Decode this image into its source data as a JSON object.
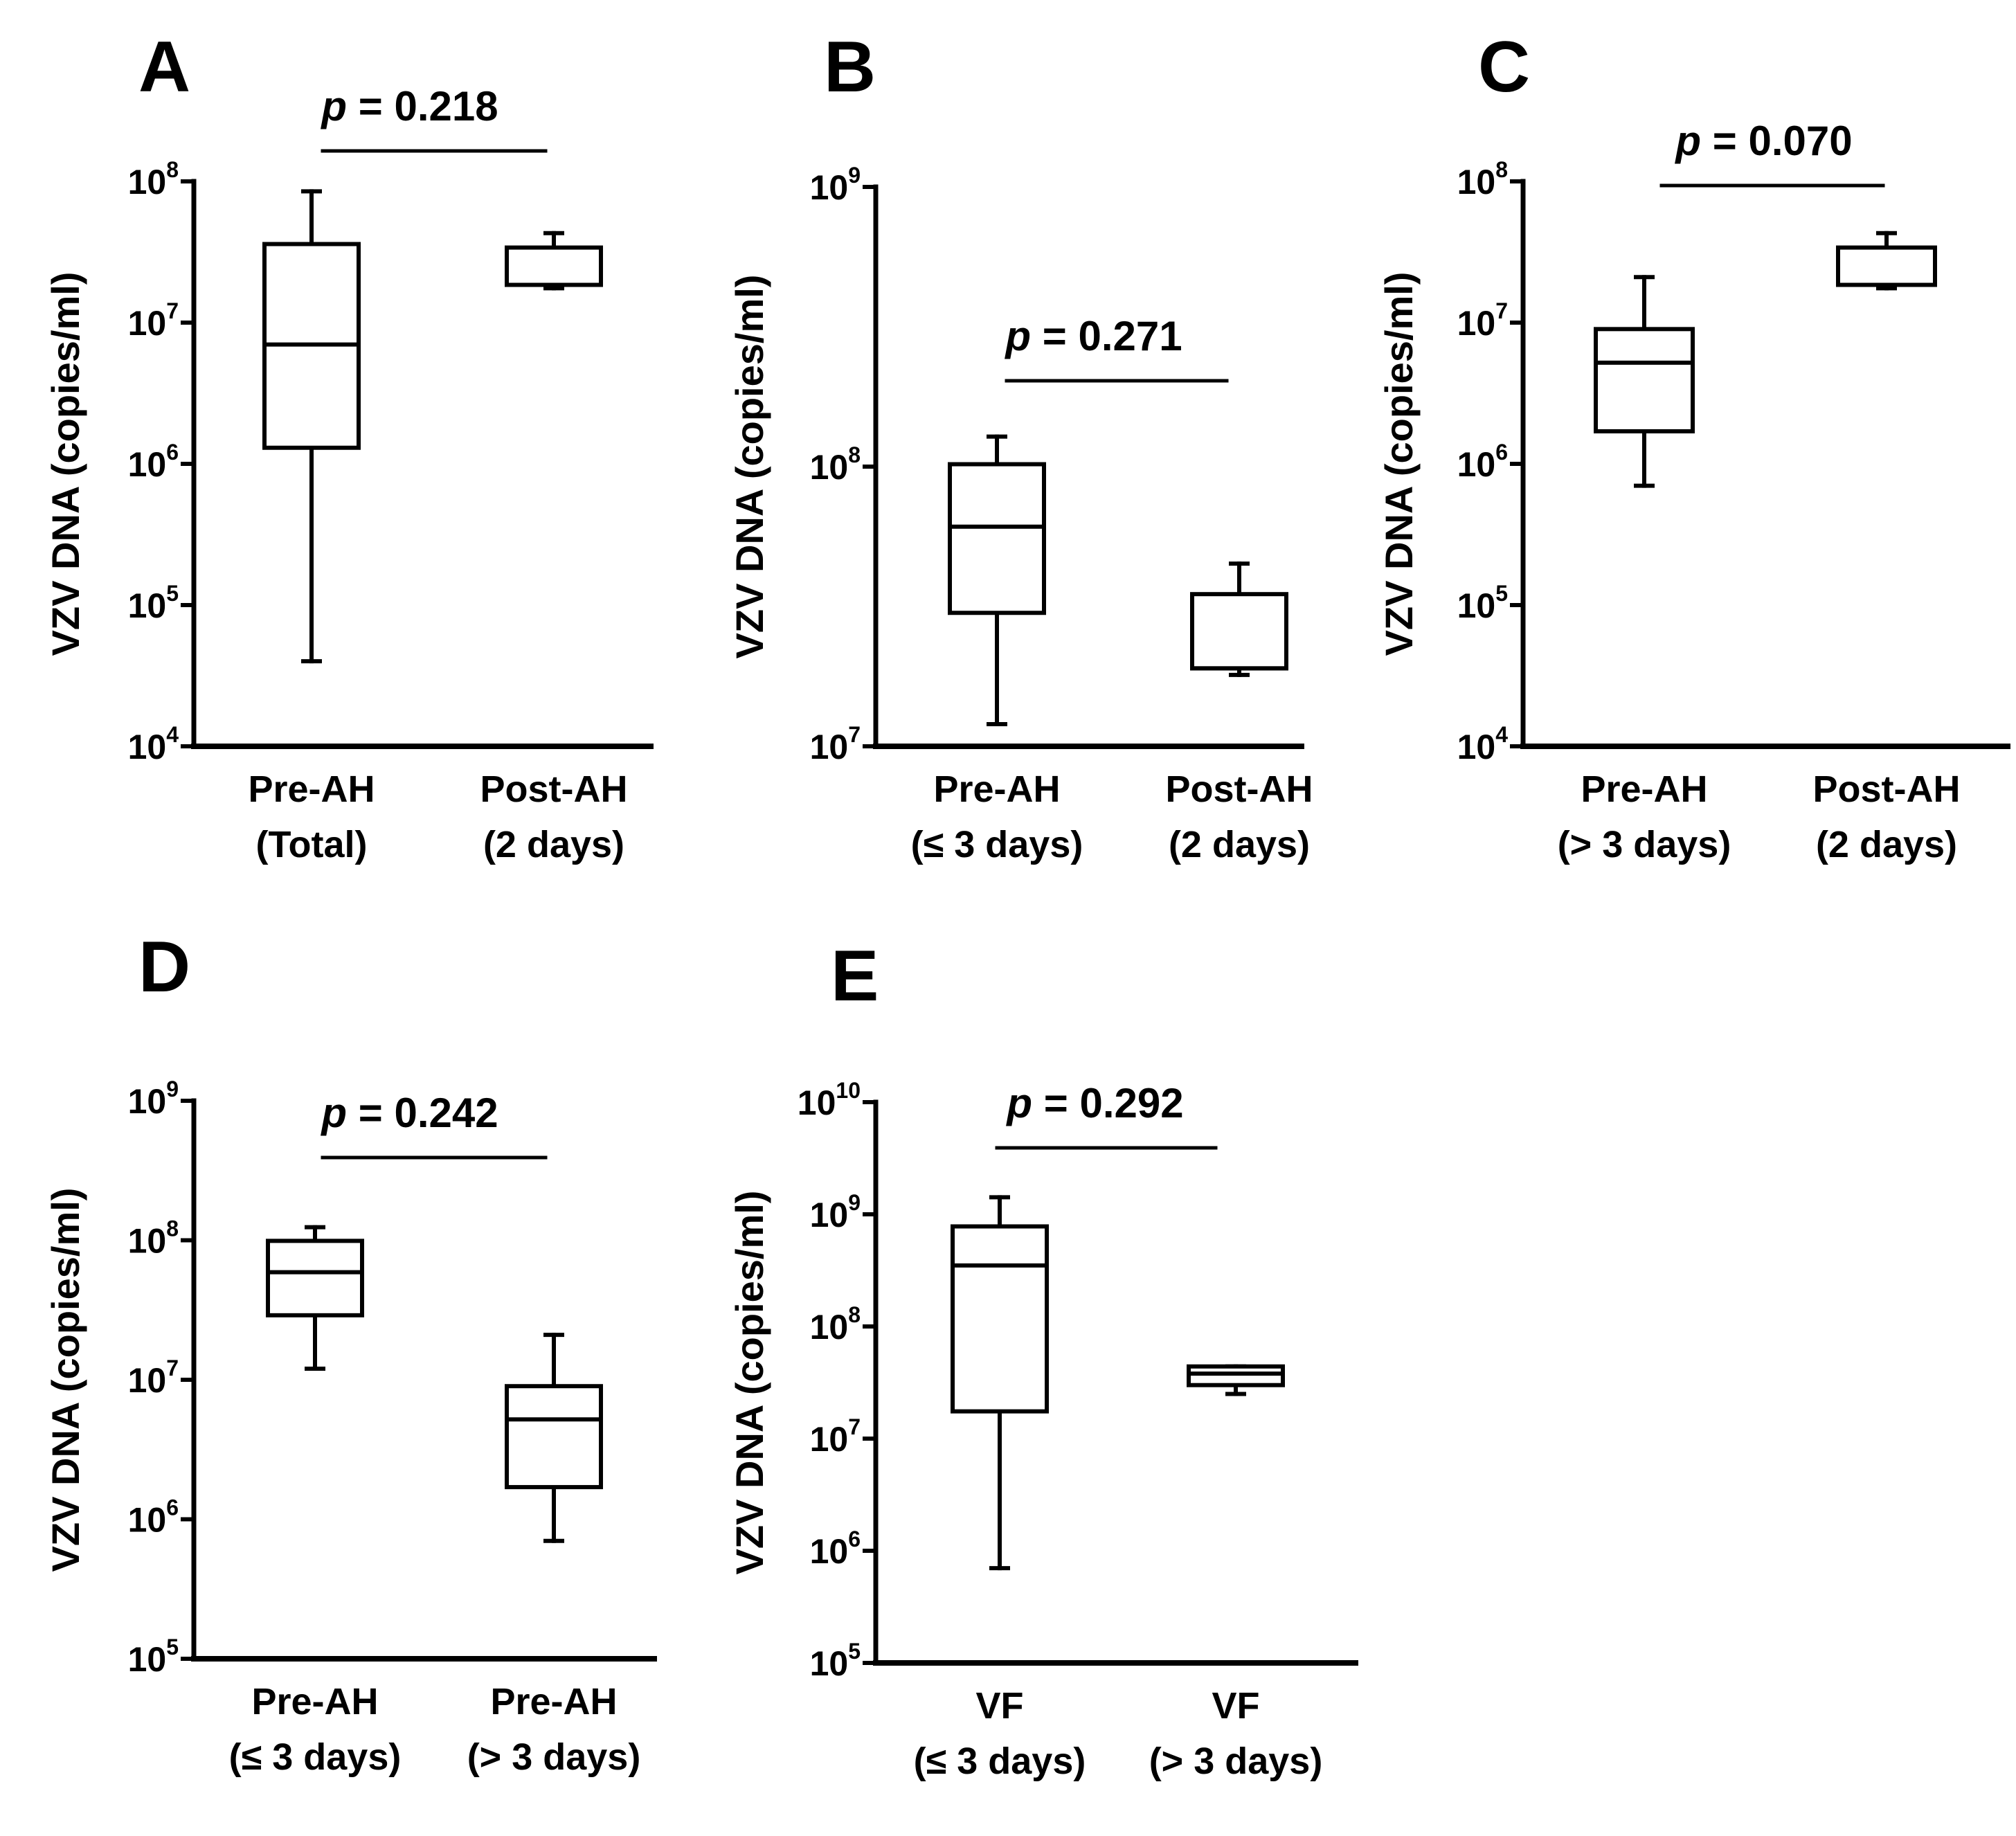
{
  "chart_data": [
    {
      "panel": "A",
      "type": "box",
      "ylabel": "VZV DNA (copies/ml)",
      "yscale": "log",
      "ylim_exponents": [
        4,
        8
      ],
      "yticks": [
        {
          "base": "10",
          "exp": "4"
        },
        {
          "base": "10",
          "exp": "5"
        },
        {
          "base": "10",
          "exp": "6"
        },
        {
          "base": "10",
          "exp": "7"
        },
        {
          "base": "10",
          "exp": "8"
        }
      ],
      "p_prefix": "p",
      "p_value": "= 0.218",
      "categories": [
        {
          "line1": "Pre-AH",
          "line2": "(Total)",
          "min": 40000,
          "q1": 1300000,
          "median": 7000000,
          "q3": 36000000,
          "max": 85000000
        },
        {
          "line1": "Post-AH",
          "line2": "(2 days)",
          "min": 17500000,
          "q1": 18500000,
          "median": 18500000,
          "q3": 34000000,
          "max": 43000000
        }
      ]
    },
    {
      "panel": "B",
      "type": "box",
      "ylabel": "VZV DNA (copies/ml)",
      "yscale": "log",
      "ylim_exponents": [
        7,
        9
      ],
      "yticks": [
        {
          "base": "10",
          "exp": "7"
        },
        {
          "base": "10",
          "exp": "8"
        },
        {
          "base": "10",
          "exp": "9"
        }
      ],
      "p_prefix": "p",
      "p_value": "= 0.271",
      "categories": [
        {
          "line1": "Pre-AH",
          "line2": "(≤ 3 days)",
          "min": 12000000,
          "q1": 30000000,
          "median": 61000000,
          "q3": 102000000,
          "max": 128000000
        },
        {
          "line1": "Post-AH",
          "line2": "(2 days)",
          "min": 18000000,
          "q1": 19000000,
          "median": 19000000,
          "q3": 35000000,
          "max": 45000000
        }
      ]
    },
    {
      "panel": "C",
      "type": "box",
      "ylabel": "VZV DNA (copies/ml)",
      "yscale": "log",
      "ylim_exponents": [
        4,
        8
      ],
      "yticks": [
        {
          "base": "10",
          "exp": "4"
        },
        {
          "base": "10",
          "exp": "5"
        },
        {
          "base": "10",
          "exp": "6"
        },
        {
          "base": "10",
          "exp": "7"
        },
        {
          "base": "10",
          "exp": "8"
        }
      ],
      "p_prefix": "p",
      "p_value": "= 0.070",
      "categories": [
        {
          "line1": "Pre-AH",
          "line2": "(> 3 days)",
          "min": 700000,
          "q1": 1700000,
          "median": 5200000,
          "q3": 9000000,
          "max": 21000000
        },
        {
          "line1": "Post-AH",
          "line2": "(2 days)",
          "min": 17500000,
          "q1": 18500000,
          "median": 18500000,
          "q3": 34000000,
          "max": 43000000
        }
      ]
    },
    {
      "panel": "D",
      "type": "box",
      "ylabel": "VZV DNA (copies/ml)",
      "yscale": "log",
      "ylim_exponents": [
        5,
        9
      ],
      "yticks": [
        {
          "base": "10",
          "exp": "5"
        },
        {
          "base": "10",
          "exp": "6"
        },
        {
          "base": "10",
          "exp": "7"
        },
        {
          "base": "10",
          "exp": "8"
        },
        {
          "base": "10",
          "exp": "9"
        }
      ],
      "p_prefix": "p",
      "p_value": "= 0.242",
      "categories": [
        {
          "line1": "Pre-AH",
          "line2": "(≤ 3 days)",
          "min": 12000000,
          "q1": 29000000,
          "median": 59000000,
          "q3": 99000000,
          "max": 124000000
        },
        {
          "line1": "Pre-AH",
          "line2": "(> 3 days)",
          "min": 700000,
          "q1": 1700000,
          "median": 5200000,
          "q3": 9000000,
          "max": 21000000
        }
      ]
    },
    {
      "panel": "E",
      "type": "box",
      "ylabel": "VZV DNA (copies/ml)",
      "yscale": "log",
      "ylim_exponents": [
        5,
        10
      ],
      "yticks": [
        {
          "base": "10",
          "exp": "5"
        },
        {
          "base": "10",
          "exp": "6"
        },
        {
          "base": "10",
          "exp": "7"
        },
        {
          "base": "10",
          "exp": "8"
        },
        {
          "base": "10",
          "exp": "9"
        },
        {
          "base": "10",
          "exp": "10"
        }
      ],
      "p_prefix": "p",
      "p_value": "= 0.292",
      "categories": [
        {
          "line1": "VF",
          "line2": "(≤ 3 days)",
          "min": 700000,
          "q1": 17500000,
          "median": 350000000,
          "q3": 780000000,
          "max": 1420000000
        },
        {
          "line1": "VF",
          "line2": "(> 3 days)",
          "min": 25000000,
          "q1": 30000000,
          "median": 38000000,
          "q3": 44000000,
          "max": 44000000
        }
      ]
    }
  ]
}
